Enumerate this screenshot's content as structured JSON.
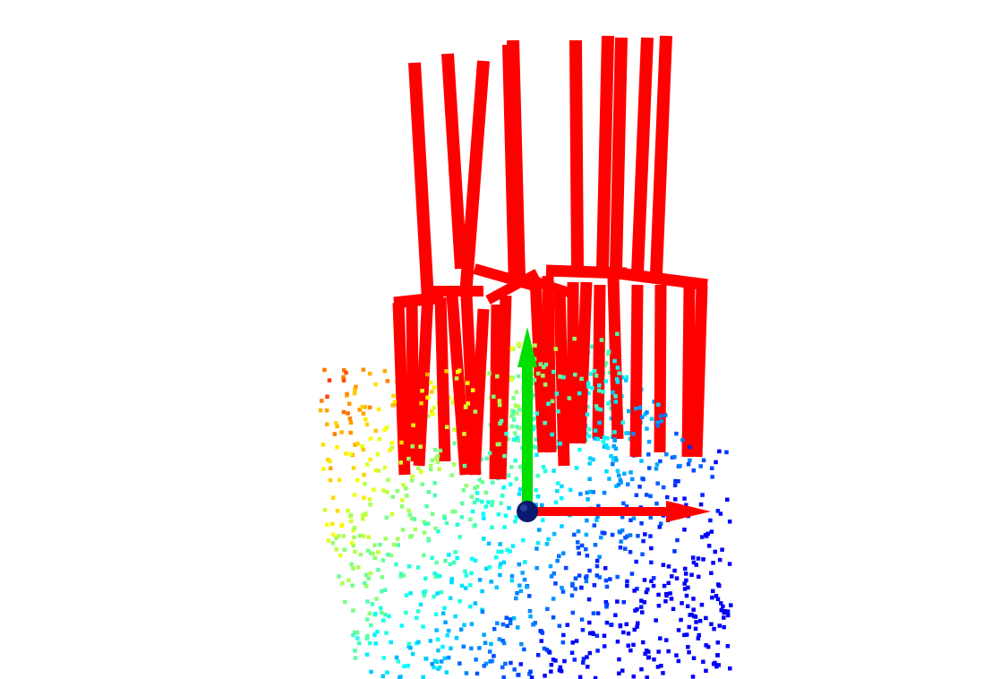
{
  "viewer": {
    "background": "#ffffff",
    "gripper_color": "#ff0000",
    "axes": {
      "x_color": "#ff0000",
      "y_color": "#00e000",
      "origin_color": "#0a1a6e"
    },
    "point_colormap": "jet"
  }
}
